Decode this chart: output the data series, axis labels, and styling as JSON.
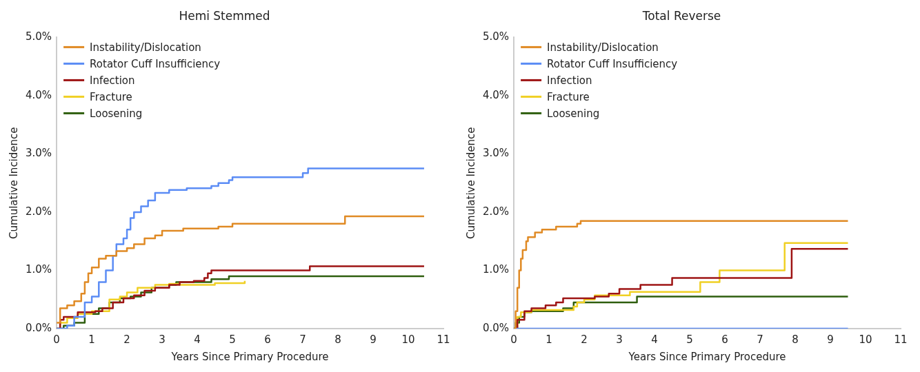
{
  "chart_data": [
    {
      "type": "step",
      "title": "Hemi Stemmed",
      "xlabel": "Years Since Primary Procedure",
      "ylabel": "Cumulative Incidence",
      "xlim": [
        0,
        11
      ],
      "xticks": [
        0,
        1,
        2,
        3,
        4,
        5,
        6,
        7,
        8,
        9,
        10,
        11
      ],
      "ylim": [
        0,
        5
      ],
      "yticks": [
        {
          "value": 0,
          "label": "0.0%"
        },
        {
          "value": 1,
          "label": "1.0%"
        },
        {
          "value": 2,
          "label": "2.0%"
        },
        {
          "value": 3,
          "label": "3.0%"
        },
        {
          "value": 4,
          "label": "4.0%"
        },
        {
          "value": 5,
          "label": "5.0%"
        }
      ],
      "grid": false,
      "legend": "top left",
      "series": [
        {
          "name": "Instability/Dislocation",
          "color": "#e08a24",
          "x": [
            0,
            0.1,
            0.3,
            0.5,
            0.7,
            0.8,
            0.9,
            1.0,
            1.2,
            1.4,
            1.7,
            2.0,
            2.2,
            2.5,
            2.8,
            3.0,
            3.6,
            4.6,
            5.0,
            8.2,
            10.45
          ],
          "values": [
            0.1,
            0.35,
            0.4,
            0.47,
            0.6,
            0.8,
            0.95,
            1.05,
            1.2,
            1.25,
            1.33,
            1.38,
            1.45,
            1.55,
            1.6,
            1.68,
            1.72,
            1.75,
            1.8,
            1.93,
            1.93
          ]
        },
        {
          "name": "Rotator Cuff Insufficiency",
          "color": "#5b8cf5",
          "x": [
            0,
            0.3,
            0.5,
            0.8,
            1.0,
            1.2,
            1.4,
            1.6,
            1.7,
            1.9,
            2.0,
            2.1,
            2.2,
            2.4,
            2.6,
            2.8,
            3.2,
            3.7,
            4.4,
            4.6,
            4.9,
            5.0,
            7.0,
            7.15,
            10.45
          ],
          "values": [
            0,
            0.05,
            0.2,
            0.45,
            0.55,
            0.8,
            1.0,
            1.25,
            1.45,
            1.55,
            1.7,
            1.9,
            2.0,
            2.1,
            2.2,
            2.33,
            2.38,
            2.41,
            2.45,
            2.5,
            2.55,
            2.6,
            2.67,
            2.75,
            2.75
          ]
        },
        {
          "name": "Infection",
          "color": "#9e1414",
          "x": [
            0,
            0.1,
            0.2,
            0.6,
            1.1,
            1.3,
            1.6,
            1.9,
            2.2,
            2.5,
            2.8,
            3.2,
            3.5,
            3.9,
            4.2,
            4.3,
            4.4,
            7.2,
            10.45
          ],
          "values": [
            0,
            0.15,
            0.2,
            0.28,
            0.3,
            0.35,
            0.45,
            0.52,
            0.57,
            0.65,
            0.7,
            0.75,
            0.8,
            0.82,
            0.87,
            0.95,
            1.0,
            1.07,
            1.07
          ]
        },
        {
          "name": "Fracture",
          "color": "#f0d024",
          "x": [
            0,
            0.1,
            0.3,
            0.6,
            1.0,
            1.5,
            1.8,
            2.0,
            2.3,
            2.8,
            3.2,
            3.5,
            4.5,
            5.35
          ],
          "values": [
            0,
            0.1,
            0.18,
            0.25,
            0.3,
            0.5,
            0.55,
            0.62,
            0.7,
            0.75,
            0.77,
            0.75,
            0.78,
            0.82
          ]
        },
        {
          "name": "Loosening",
          "color": "#2e5e0e",
          "x": [
            0,
            0.2,
            0.5,
            0.8,
            1.2,
            1.5,
            1.8,
            2.1,
            2.4,
            2.7,
            3.2,
            3.4,
            4.4,
            4.9,
            10.45
          ],
          "values": [
            0,
            0.05,
            0.1,
            0.25,
            0.35,
            0.45,
            0.52,
            0.55,
            0.62,
            0.7,
            0.75,
            0.8,
            0.85,
            0.9,
            0.9
          ]
        }
      ]
    },
    {
      "type": "step",
      "title": "Total Reverse",
      "xlabel": "Years Since Primary Procedure",
      "ylabel": "Cumulative Incidence",
      "xlim": [
        0,
        11
      ],
      "xticks": [
        0,
        1,
        2,
        3,
        4,
        5,
        6,
        7,
        8,
        9,
        10,
        11
      ],
      "ylim": [
        0,
        5
      ],
      "yticks": [
        {
          "value": 0,
          "label": "0.0%"
        },
        {
          "value": 1,
          "label": "1.0%"
        },
        {
          "value": 2,
          "label": "2.0%"
        },
        {
          "value": 3,
          "label": "3.0%"
        },
        {
          "value": 4,
          "label": "4.0%"
        },
        {
          "value": 5,
          "label": "5.0%"
        }
      ],
      "grid": false,
      "legend": "top left",
      "series": [
        {
          "name": "Instability/Dislocation",
          "color": "#e08a24",
          "x": [
            0,
            0.05,
            0.1,
            0.15,
            0.2,
            0.25,
            0.35,
            0.4,
            0.6,
            0.8,
            1.2,
            1.8,
            1.9,
            9.5
          ],
          "values": [
            0,
            0.3,
            0.7,
            1.0,
            1.2,
            1.35,
            1.5,
            1.57,
            1.65,
            1.7,
            1.75,
            1.8,
            1.85,
            1.85
          ]
        },
        {
          "name": "Rotator Cuff Insufficiency",
          "color": "#5b8cf5",
          "x": [
            0,
            9.5
          ],
          "values": [
            0,
            0
          ]
        },
        {
          "name": "Infection",
          "color": "#9e1414",
          "x": [
            0,
            0.1,
            0.3,
            0.5,
            0.9,
            1.2,
            1.4,
            2.3,
            2.7,
            3.0,
            3.6,
            4.5,
            7.9,
            9.5
          ],
          "values": [
            0,
            0.15,
            0.3,
            0.35,
            0.4,
            0.45,
            0.52,
            0.55,
            0.6,
            0.68,
            0.75,
            0.87,
            1.37,
            1.37
          ]
        },
        {
          "name": "Fracture",
          "color": "#f0d024",
          "x": [
            0,
            0.1,
            0.2,
            0.5,
            1.7,
            1.8,
            2.0,
            2.3,
            3.3,
            5.3,
            5.85,
            7.7,
            9.5
          ],
          "values": [
            0,
            0.2,
            0.28,
            0.32,
            0.38,
            0.45,
            0.5,
            0.57,
            0.63,
            0.8,
            1.0,
            1.47,
            1.47
          ]
        },
        {
          "name": "Loosening",
          "color": "#2e5e0e",
          "x": [
            0,
            0.05,
            0.15,
            0.3,
            0.5,
            1.4,
            1.7,
            3.5,
            9.5
          ],
          "values": [
            0,
            0.1,
            0.2,
            0.28,
            0.3,
            0.35,
            0.45,
            0.55,
            0.55
          ]
        }
      ]
    }
  ]
}
